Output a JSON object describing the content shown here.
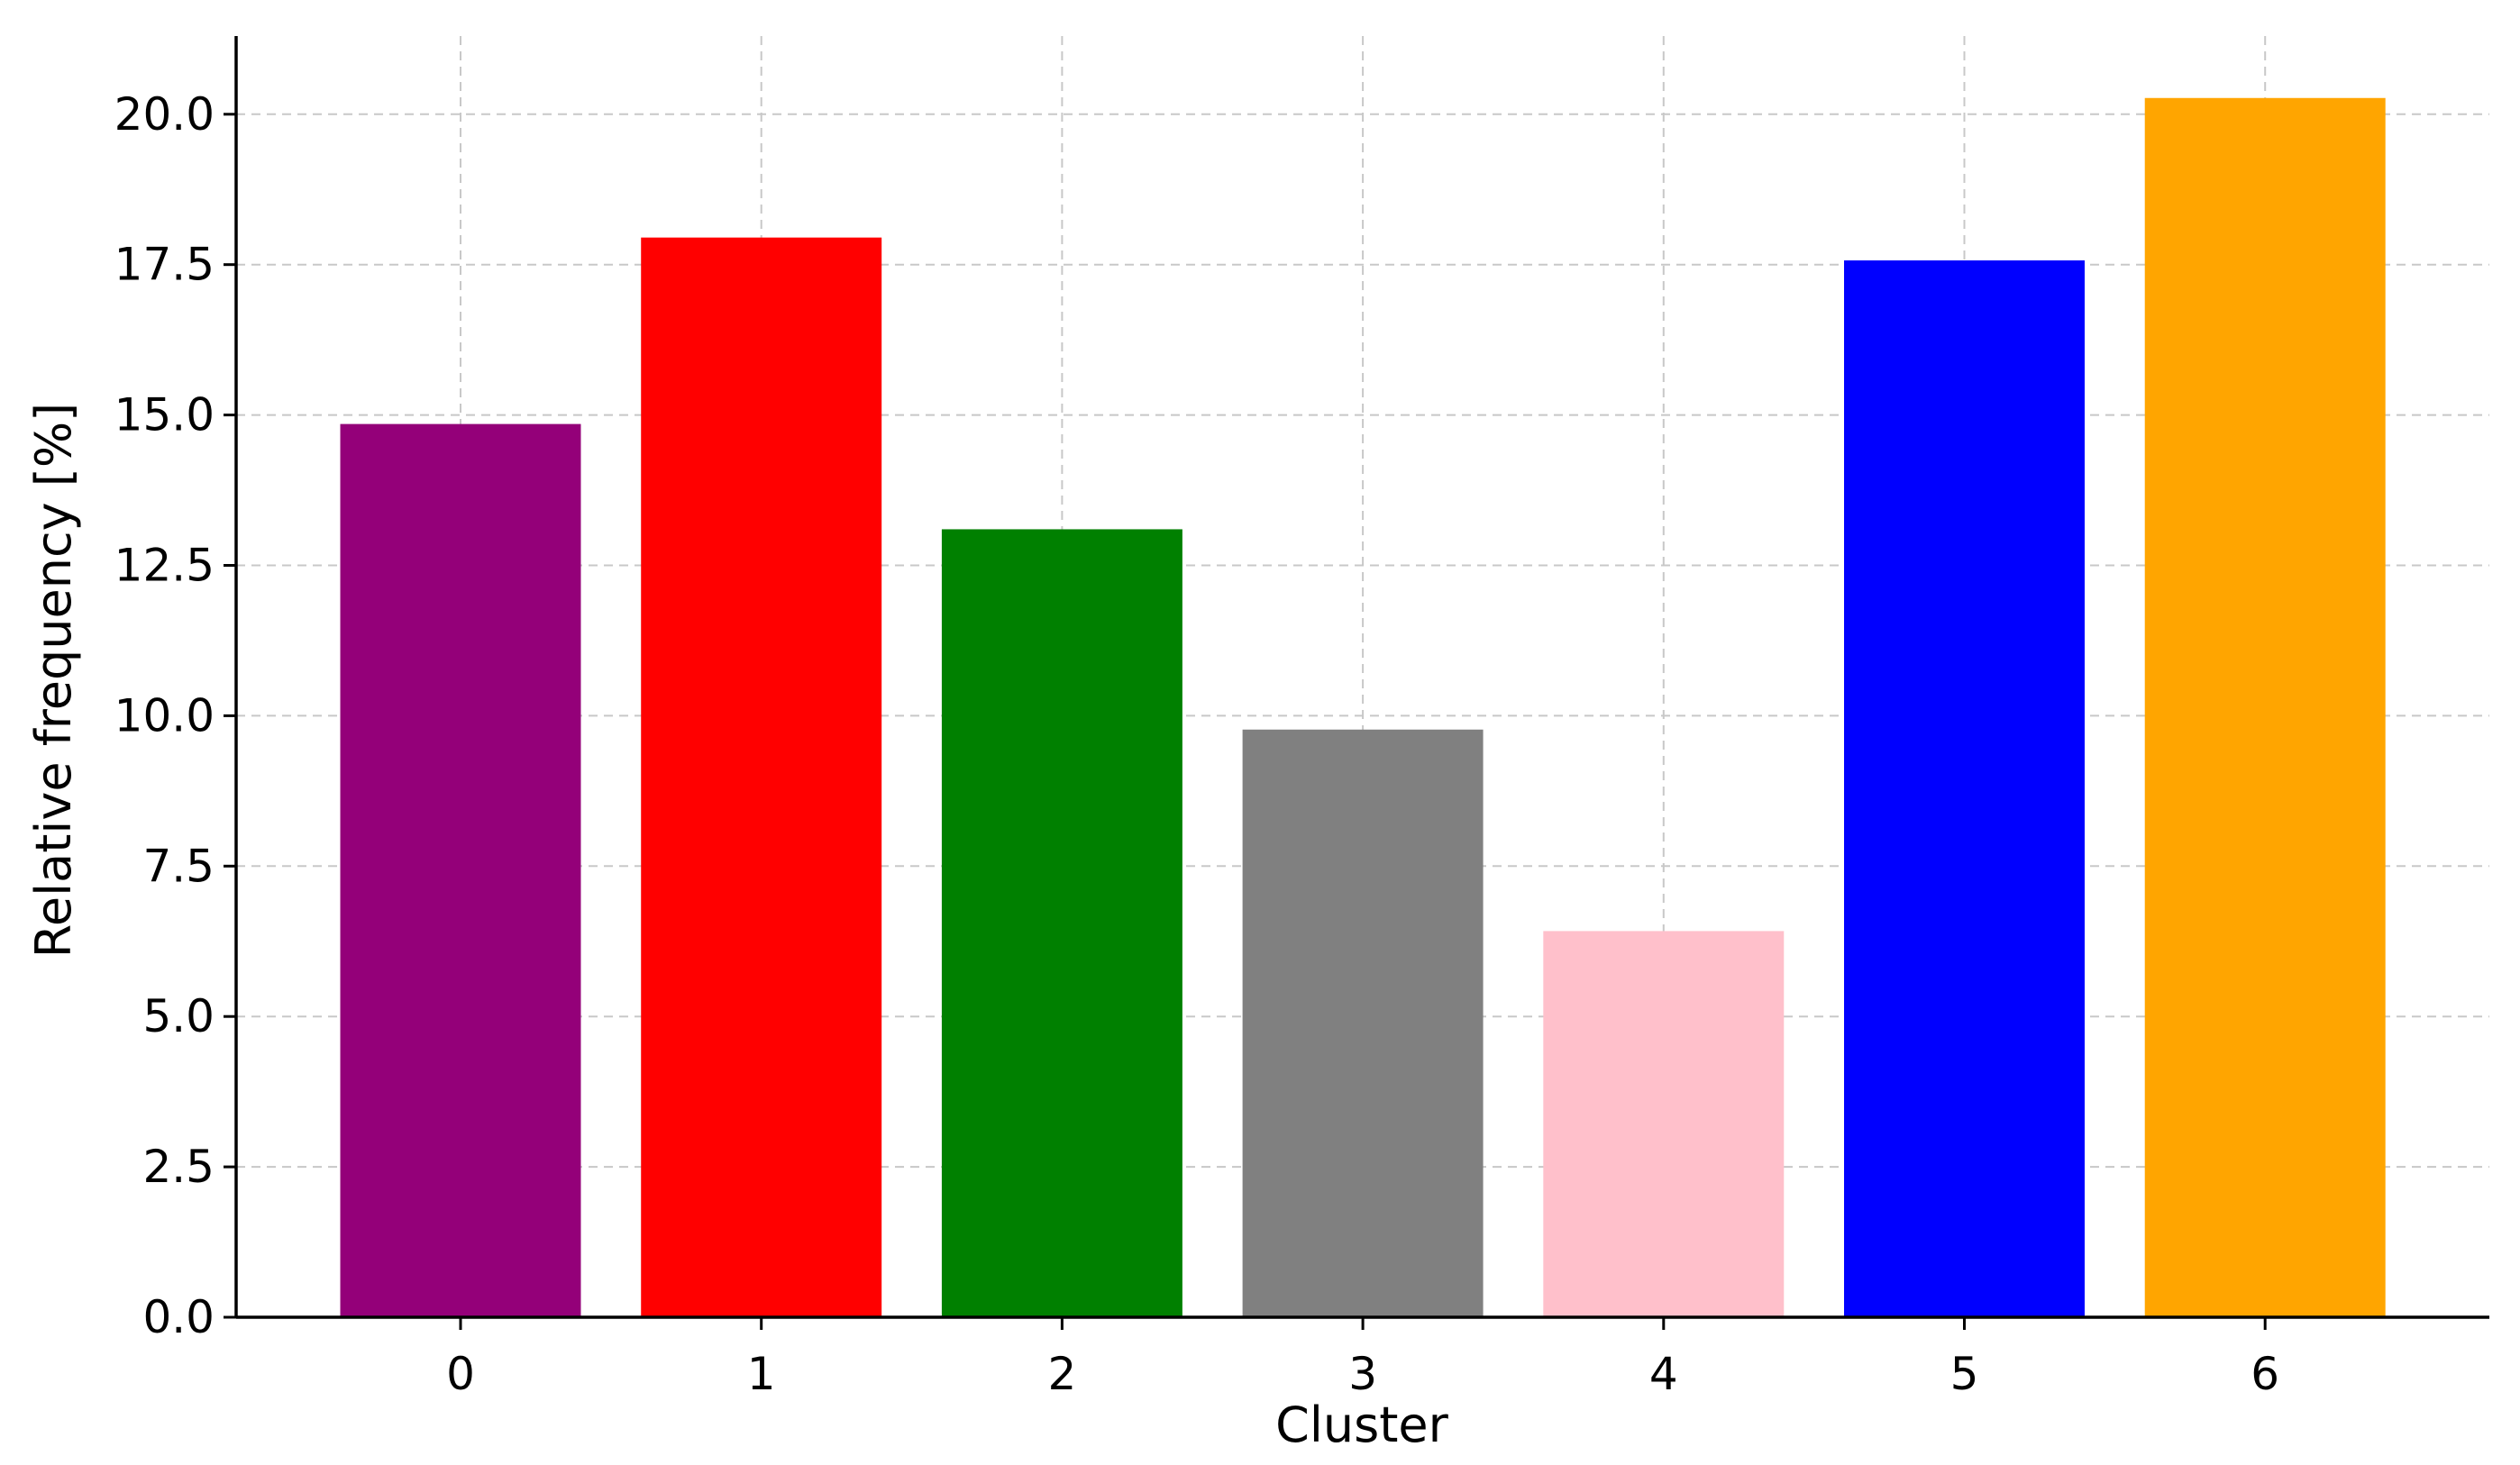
{
  "chart_data": {
    "type": "bar",
    "title": "",
    "xlabel": "Cluster",
    "ylabel": "Relative frequency [%]",
    "categories": [
      "0",
      "1",
      "2",
      "3",
      "4",
      "5",
      "6"
    ],
    "values": [
      14.85,
      17.95,
      13.1,
      9.77,
      6.42,
      17.57,
      20.27
    ],
    "colors": [
      "#940079",
      "#ff0000",
      "#008000",
      "#808080",
      "#ffc0cb",
      "#0000ff",
      "#ffa500"
    ],
    "ylim": [
      0,
      21.3
    ],
    "yticks": [
      0,
      2.5,
      5,
      7.5,
      10,
      12.5,
      15,
      17.5,
      20
    ],
    "ytick_labels": [
      "0.0",
      "2.5",
      "5.0",
      "7.5",
      "10.0",
      "12.5",
      "15.0",
      "17.5",
      "20.0"
    ],
    "grid": true,
    "legend": "none"
  }
}
